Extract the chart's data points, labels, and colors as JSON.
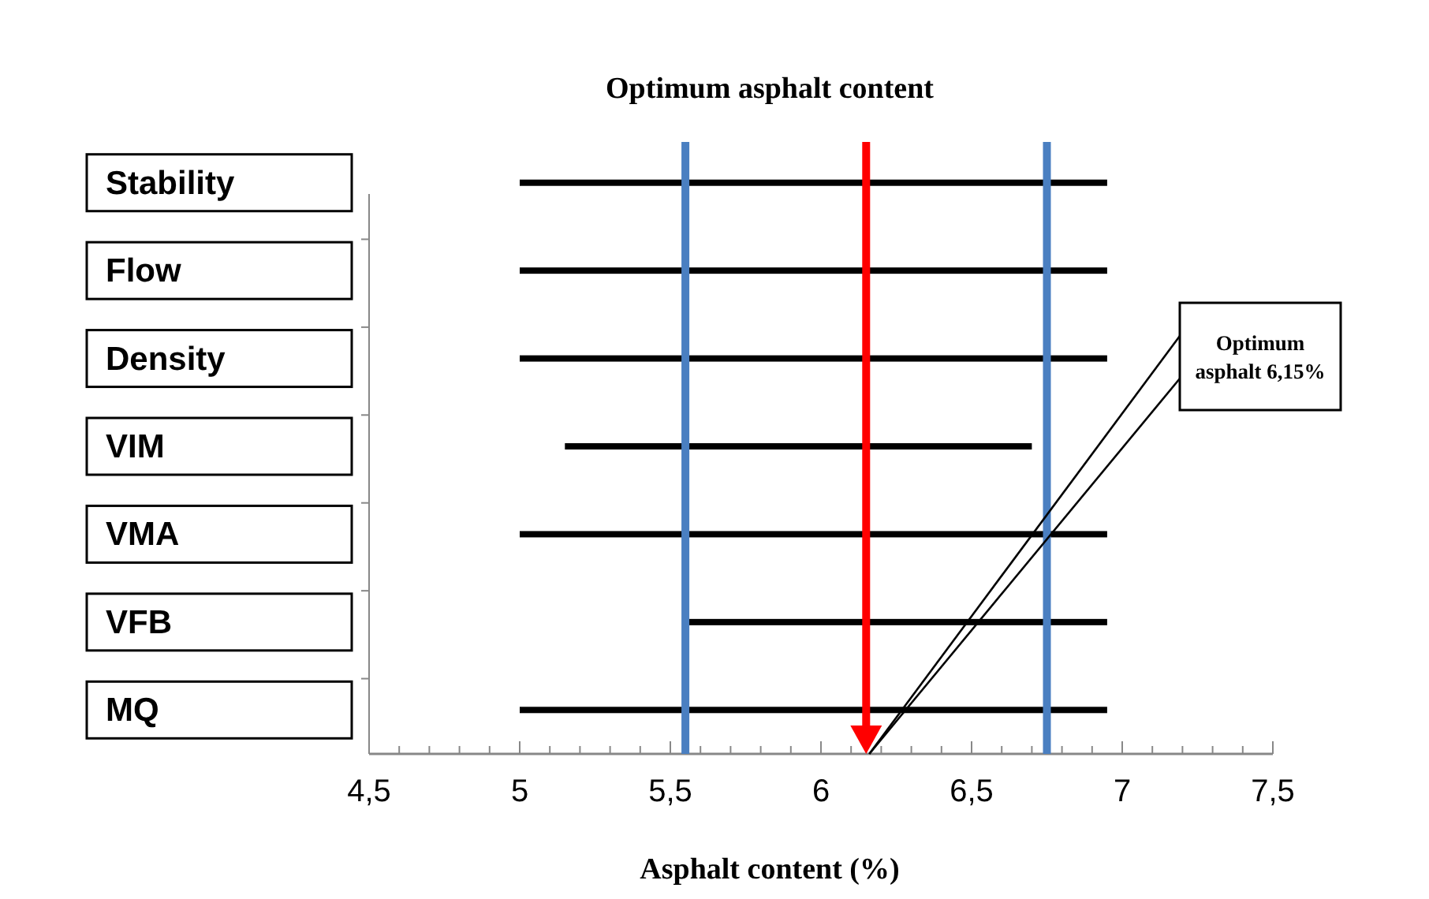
{
  "chart_data": {
    "type": "bar",
    "orientation": "horizontal",
    "title": "Optimum asphalt content",
    "xlabel": "Asphalt content (%)",
    "categories": [
      "Stability",
      "Flow",
      "Density",
      "VIM",
      "VMA",
      "VFB",
      "MQ"
    ],
    "base": [
      5,
      5,
      5,
      5.15,
      5,
      5.55,
      5
    ],
    "values": [
      1.95,
      1.95,
      1.95,
      1.55,
      1.95,
      1.4,
      1.95
    ],
    "color": "#000000",
    "xlim": [
      4.5,
      7.5
    ],
    "xticks": [
      {
        "value": 4.5,
        "label": "4,5"
      },
      {
        "value": 4.6,
        "label": null
      },
      {
        "value": 4.7,
        "label": null
      },
      {
        "value": 4.8,
        "label": null
      },
      {
        "value": 4.9,
        "label": null
      },
      5,
      {
        "value": 5.1,
        "label": null
      },
      {
        "value": 5.2,
        "label": null
      },
      {
        "value": 5.3,
        "label": null
      },
      {
        "value": 5.4,
        "label": null
      },
      {
        "value": 5.5,
        "label": "5,5"
      },
      {
        "value": 5.6,
        "label": null
      },
      {
        "value": 5.7,
        "label": null
      },
      {
        "value": 5.8,
        "label": null
      },
      {
        "value": 5.9,
        "label": null
      },
      6,
      {
        "value": 6.1,
        "label": null
      },
      {
        "value": 6.2,
        "label": null
      },
      {
        "value": 6.3,
        "label": null
      },
      {
        "value": 6.4,
        "label": null
      },
      {
        "value": 6.5,
        "label": "6,5"
      },
      {
        "value": 6.6,
        "label": null
      },
      {
        "value": 6.7,
        "label": null
      },
      {
        "value": 6.8,
        "label": null
      },
      {
        "value": 6.9,
        "label": null
      },
      7,
      {
        "value": 7.1,
        "label": null
      },
      {
        "value": 7.2,
        "label": null
      },
      {
        "value": 7.3,
        "label": null
      },
      {
        "value": 7.4,
        "label": null
      },
      {
        "value": 7.5,
        "label": "7,5"
      }
    ],
    "ref_lines": [
      {
        "axis": "x",
        "value": 5.55,
        "color": "#4a7fc1"
      },
      {
        "axis": "x",
        "value": 6.75,
        "color": "#4a7fc1"
      },
      {
        "axis": "x",
        "value": 6.15,
        "color": "#ff0000"
      }
    ],
    "annotations": [
      "Optimum asphalt 6,15%"
    ]
  }
}
